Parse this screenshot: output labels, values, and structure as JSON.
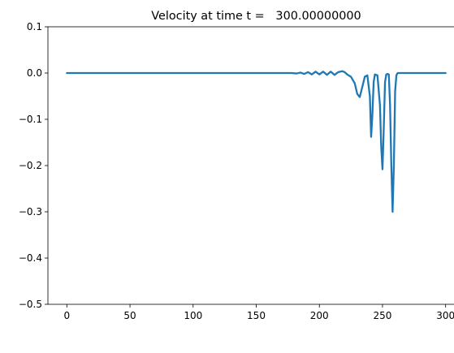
{
  "chart_data": {
    "type": "line",
    "title": "Velocity at time t =   300.00000000",
    "xlabel": "",
    "ylabel": "",
    "xlim": [
      -15,
      315
    ],
    "ylim": [
      -0.5,
      0.1
    ],
    "xticks": [
      0,
      50,
      100,
      150,
      200,
      250,
      300
    ],
    "xtick_labels": [
      "0",
      "50",
      "100",
      "150",
      "200",
      "250",
      "300"
    ],
    "yticks": [
      0.1,
      0.0,
      -0.1,
      -0.2,
      -0.3,
      -0.4,
      -0.5
    ],
    "ytick_labels": [
      "0.1",
      "0.0",
      "−0.1",
      "−0.2",
      "−0.3",
      "−0.4",
      "−0.5"
    ],
    "grid": false,
    "series": [
      {
        "color": "#1f77b4",
        "x": [
          0,
          50,
          100,
          150,
          178,
          182,
          185,
          188,
          191,
          194,
          197,
          200,
          203,
          206,
          209,
          212,
          215,
          218,
          220,
          222,
          225,
          228,
          230,
          232,
          234,
          236,
          238,
          240,
          241,
          242,
          243,
          244,
          245,
          246,
          248,
          249,
          250,
          251,
          252,
          253,
          254,
          255,
          256,
          257,
          258,
          259,
          260,
          261,
          262,
          263,
          265,
          270,
          300
        ],
        "y": [
          0,
          0,
          0,
          0,
          0,
          -0.001,
          0.001,
          -0.002,
          0.002,
          -0.003,
          0.003,
          -0.003,
          0.003,
          -0.004,
          0.003,
          -0.004,
          0.002,
          0.004,
          0.002,
          -0.003,
          -0.008,
          -0.022,
          -0.045,
          -0.052,
          -0.03,
          -0.008,
          -0.005,
          -0.05,
          -0.138,
          -0.09,
          -0.02,
          -0.003,
          -0.004,
          -0.005,
          -0.07,
          -0.16,
          -0.208,
          -0.12,
          -0.02,
          -0.003,
          -0.002,
          -0.003,
          -0.07,
          -0.2,
          -0.3,
          -0.2,
          -0.04,
          -0.005,
          0,
          0,
          0,
          0,
          0
        ]
      }
    ]
  }
}
